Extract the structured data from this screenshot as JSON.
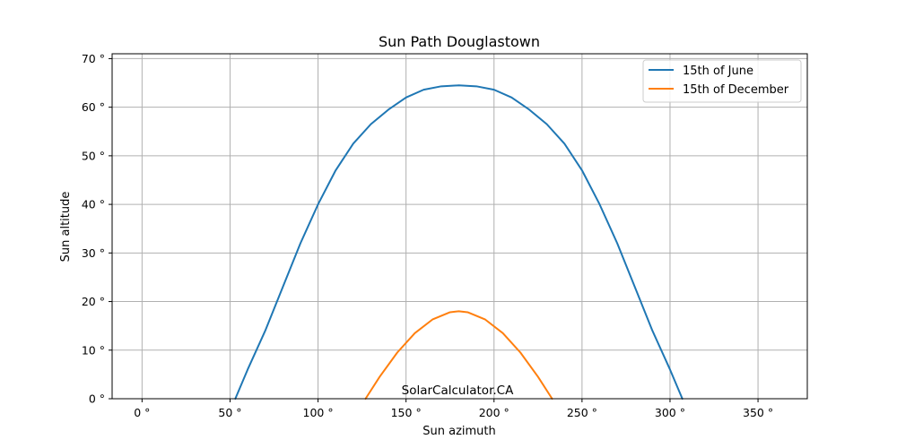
{
  "chart_data": {
    "type": "line",
    "title": "Sun Path Douglastown",
    "xlabel": "Sun azimuth",
    "ylabel": "Sun altitude",
    "xlim": [
      -17,
      378
    ],
    "ylim": [
      0,
      71
    ],
    "x_ticks": [
      0,
      50,
      100,
      150,
      200,
      250,
      300,
      350
    ],
    "y_ticks": [
      0,
      10,
      20,
      30,
      40,
      50,
      60,
      70
    ],
    "x_tick_labels": [
      "0 °",
      "50 °",
      "100 °",
      "150 °",
      "200 °",
      "250 °",
      "300 °",
      "350 °"
    ],
    "y_tick_labels": [
      "0 °",
      "10 °",
      "20 °",
      "30 °",
      "40 °",
      "50 °",
      "60 °",
      "70 °"
    ],
    "grid": true,
    "legend_position": "top-right",
    "annotation": "SolarCalculator.CA",
    "series": [
      {
        "name": "15th of June",
        "color": "#1f77b4",
        "x": [
          53,
          60,
          70,
          80,
          90,
          100,
          110,
          120,
          130,
          140,
          150,
          160,
          170,
          180,
          190,
          200,
          210,
          220,
          230,
          240,
          250,
          260,
          270,
          280,
          290,
          300,
          307
        ],
        "y": [
          0,
          6,
          14,
          23,
          32,
          40,
          47,
          52.5,
          56.5,
          59.5,
          62,
          63.6,
          64.3,
          64.5,
          64.3,
          63.6,
          62,
          59.5,
          56.5,
          52.5,
          47,
          40,
          32,
          23,
          14,
          6,
          0
        ]
      },
      {
        "name": "15th of December",
        "color": "#ff7f0e",
        "x": [
          127,
          135,
          145,
          155,
          165,
          175,
          180,
          185,
          195,
          205,
          215,
          225,
          233
        ],
        "y": [
          0,
          4.5,
          9.5,
          13.5,
          16.3,
          17.8,
          18,
          17.8,
          16.3,
          13.5,
          9.5,
          4.5,
          0
        ]
      }
    ]
  }
}
